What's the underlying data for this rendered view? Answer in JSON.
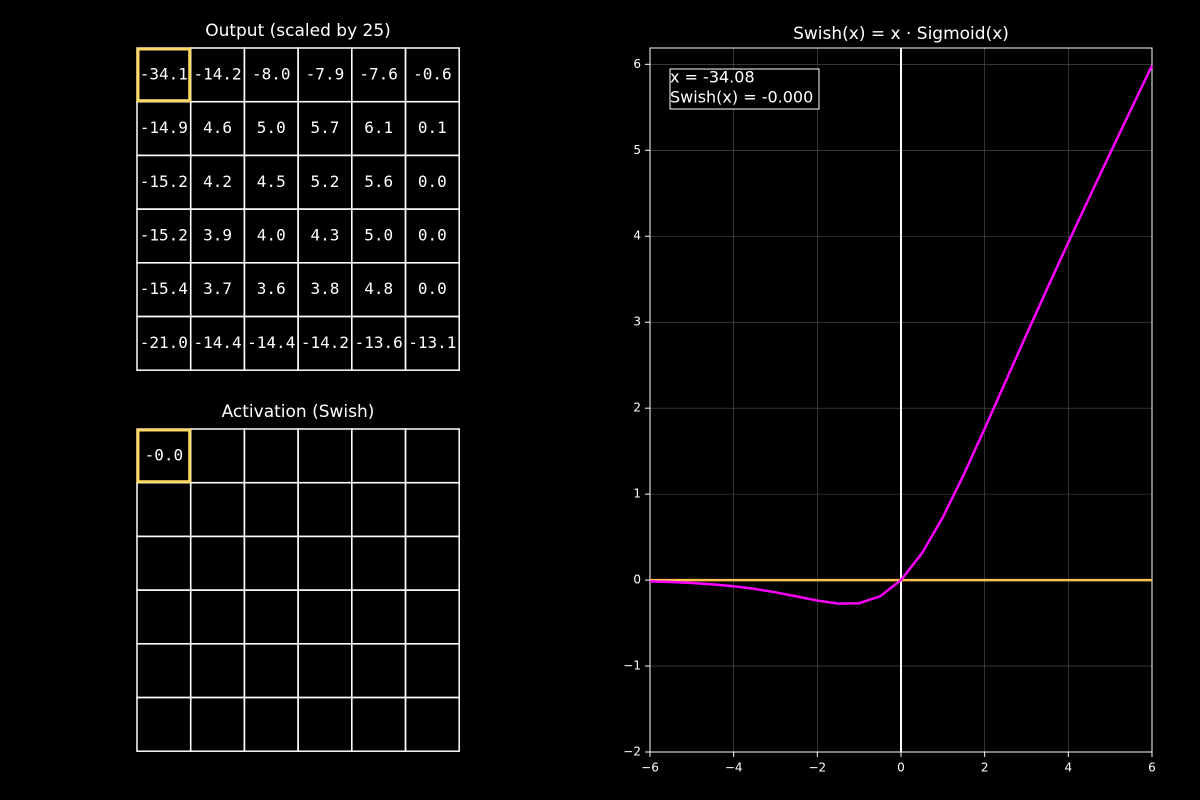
{
  "output_grid": {
    "title": "Output (scaled by 25)",
    "highlight": [
      0,
      0
    ],
    "rows": [
      [
        "-34.1",
        "-14.2",
        "-8.0",
        "-7.9",
        "-7.6",
        "-0.6"
      ],
      [
        "-14.9",
        "4.6",
        "5.0",
        "5.7",
        "6.1",
        "0.1"
      ],
      [
        "-15.2",
        "4.2",
        "4.5",
        "5.2",
        "5.6",
        "0.0"
      ],
      [
        "-15.2",
        "3.9",
        "4.0",
        "4.3",
        "5.0",
        "0.0"
      ],
      [
        "-15.4",
        "3.7",
        "3.6",
        "3.8",
        "4.8",
        "0.0"
      ],
      [
        "-21.0",
        "-14.4",
        "-14.4",
        "-14.2",
        "-13.6",
        "-13.1"
      ]
    ]
  },
  "activation_grid": {
    "title": "Activation (Swish)",
    "row_count": 6,
    "col_count": 6,
    "highlight": [
      0,
      0
    ],
    "cells": [
      {
        "row": 0,
        "col": 0,
        "text": "-0.0"
      }
    ]
  },
  "chart_data": {
    "type": "line",
    "title": "Swish(x) = x · Sigmoid(x)",
    "annotation": [
      "x = -34.08",
      "Swish(x) = -0.000"
    ],
    "x": [
      -6,
      -5.5,
      -5,
      -4.5,
      -4,
      -3.5,
      -3,
      -2.5,
      -2,
      -1.5,
      -1,
      -0.5,
      0,
      0.5,
      1,
      1.5,
      2,
      2.5,
      3,
      3.5,
      4,
      4.5,
      5,
      5.5,
      6
    ],
    "series": [
      {
        "color": "#ff00ff",
        "values": [
          -0.0148,
          -0.0224,
          -0.0335,
          -0.0494,
          -0.0719,
          -0.1026,
          -0.1423,
          -0.1896,
          -0.2384,
          -0.2736,
          -0.2689,
          -0.1888,
          0,
          0.3112,
          0.7311,
          1.2264,
          1.7616,
          2.3104,
          2.8577,
          3.3974,
          3.9281,
          4.4506,
          4.9665,
          5.4776,
          5.9852
        ]
      },
      {
        "color": "#ffc04d",
        "x": [
          -6,
          6
        ],
        "values": [
          0,
          0
        ]
      }
    ],
    "xlim": [
      -6,
      6
    ],
    "ylim": [
      -2,
      6.19
    ],
    "xticks": [
      {
        "value": -6,
        "label": "−6"
      },
      {
        "value": -4,
        "label": "−4"
      },
      {
        "value": -2,
        "label": "−2"
      },
      0,
      2,
      4,
      6
    ],
    "yticks": [
      {
        "value": -2,
        "label": "−2"
      },
      {
        "value": -1,
        "label": "−1"
      },
      0,
      1,
      2,
      3,
      4,
      5,
      6
    ],
    "grid": true,
    "vline_x": 0
  }
}
